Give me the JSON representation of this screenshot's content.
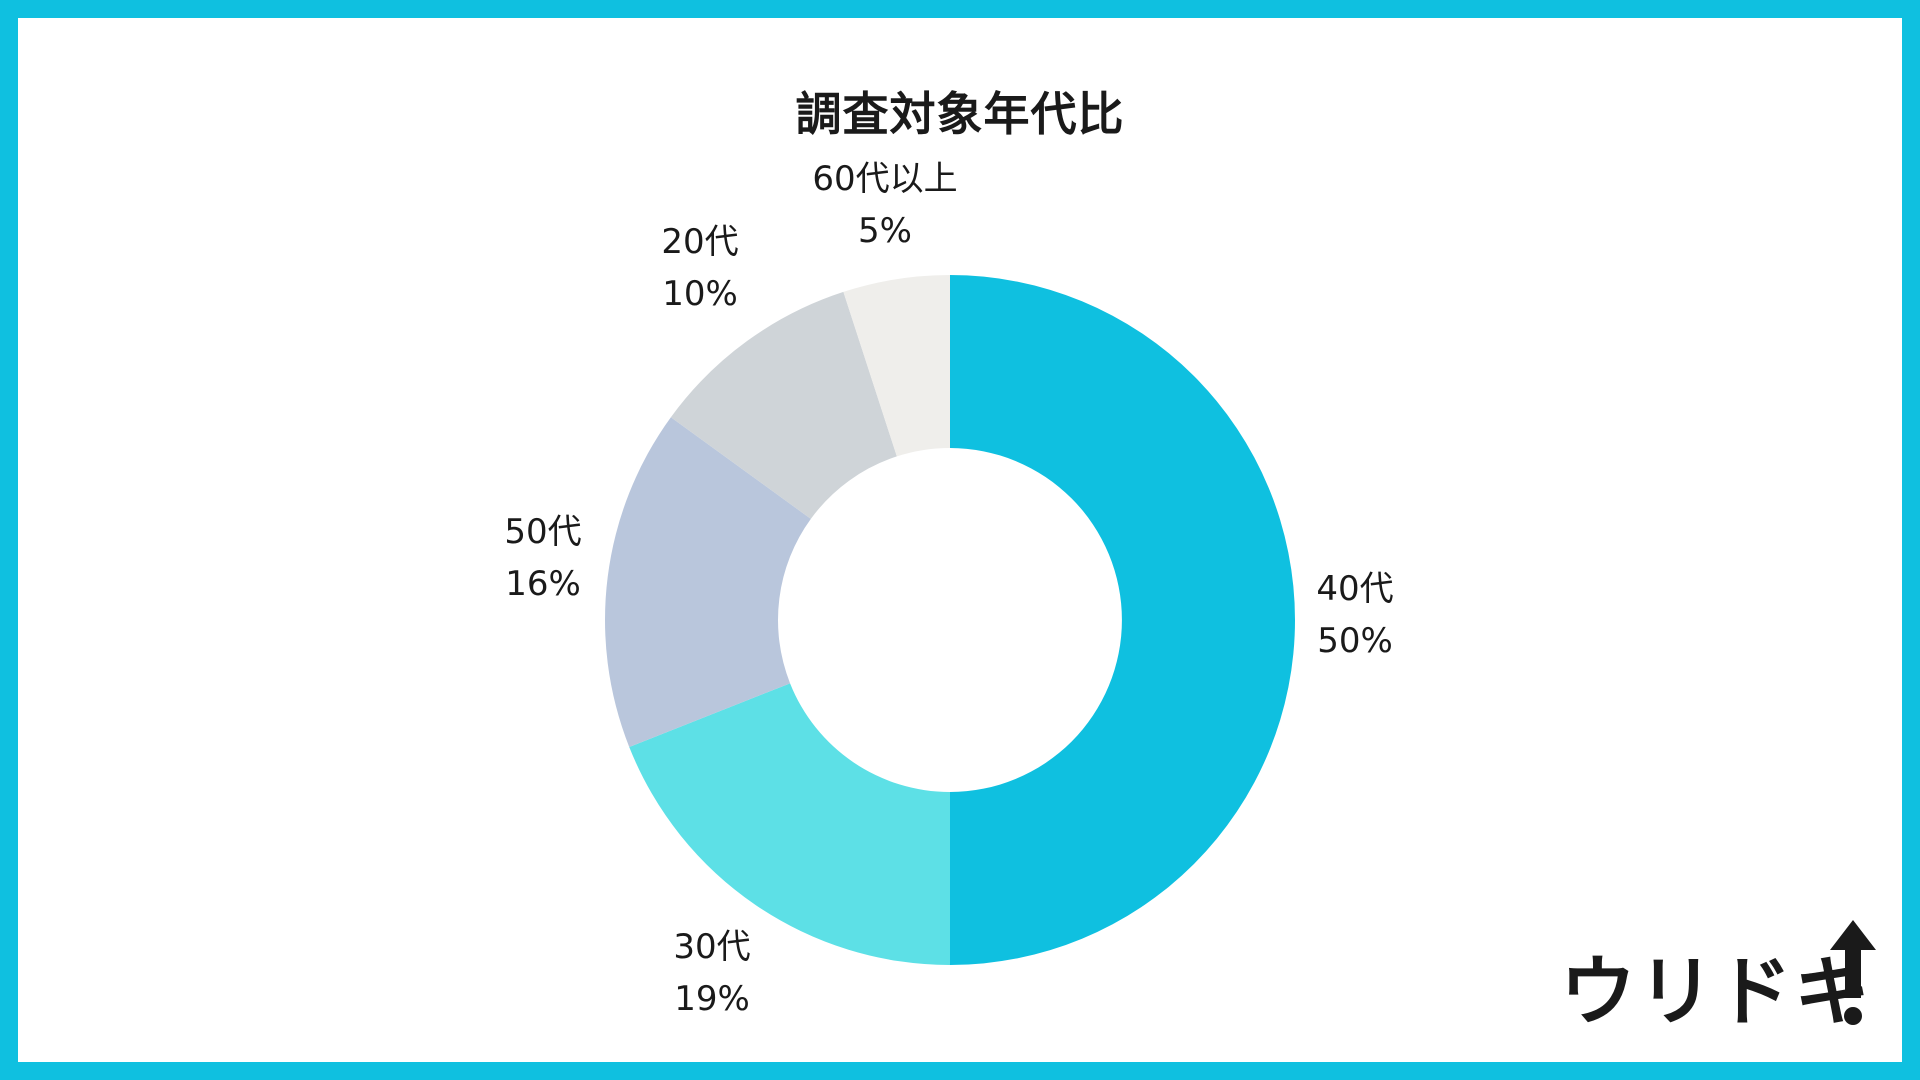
{
  "chart_data": {
    "type": "pie",
    "title": "調査対象年代比",
    "donut": true,
    "slices": [
      {
        "label": "40代",
        "value": 50,
        "display": "50%",
        "color": "#0fc0e0"
      },
      {
        "label": "30代",
        "value": 19,
        "display": "19%",
        "color": "#5de0e6"
      },
      {
        "label": "50代",
        "value": 16,
        "display": "16%",
        "color": "#b9c6dc"
      },
      {
        "label": "20代",
        "value": 10,
        "display": "10%",
        "color": "#cfd4d8"
      },
      {
        "label": "60代以上",
        "value": 5,
        "display": "5%",
        "color": "#efeeeb"
      }
    ]
  },
  "brand": {
    "logo_text": "ウリドキ",
    "frame_color": "#0fc0e0"
  }
}
